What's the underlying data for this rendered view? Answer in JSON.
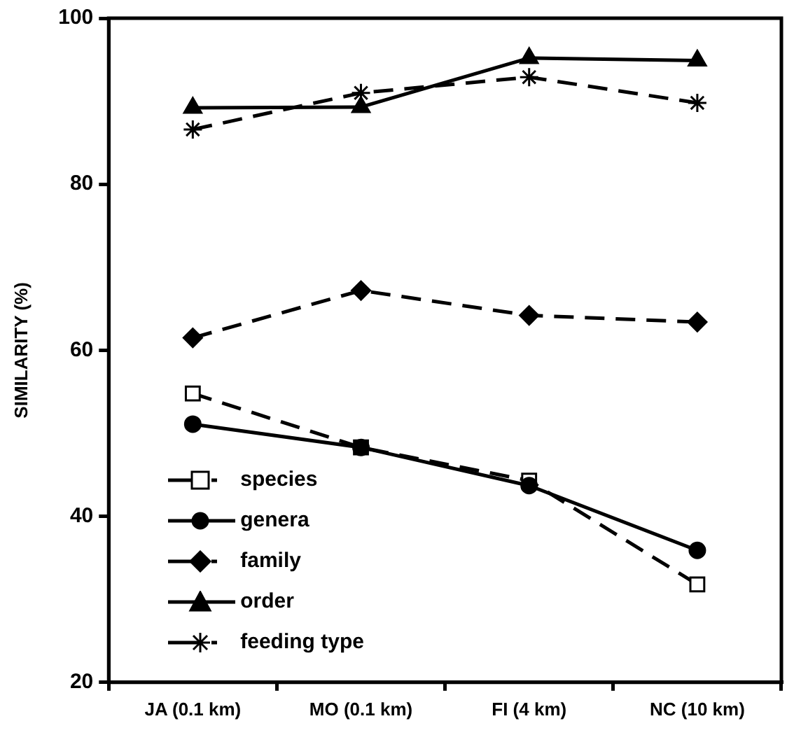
{
  "chart_data": {
    "type": "line",
    "ylabel": "SIMILARITY (%)",
    "categories": [
      "JA (0.1 km)",
      "MO (0.1 km)",
      "FI (4 km)",
      "NC (10 km)"
    ],
    "ylim": [
      20,
      100
    ],
    "yticks": [
      20,
      40,
      60,
      80,
      100
    ],
    "grid": false,
    "legend": "bottom left",
    "series": [
      {
        "name": "species",
        "color": "#000000",
        "marker": "square",
        "line_style": "dashed",
        "values": [
          54.8,
          48.3,
          44.3,
          31.8
        ]
      },
      {
        "name": "genera",
        "color": "#000000",
        "marker": "circle",
        "line_style": "solid",
        "values": [
          51.1,
          48.3,
          43.7,
          35.9
        ]
      },
      {
        "name": "family",
        "color": "#000000",
        "marker": "diamond",
        "line_style": "dashed",
        "values": [
          61.5,
          67.2,
          64.2,
          63.4
        ]
      },
      {
        "name": "order",
        "color": "#000000",
        "marker": "triangle",
        "line_style": "solid",
        "values": [
          89.2,
          89.3,
          95.2,
          94.9
        ]
      },
      {
        "name": "feeding type",
        "color": "#000000",
        "marker": "cross",
        "line_style": "dashed",
        "values": [
          86.6,
          91.0,
          92.9,
          89.8
        ]
      }
    ]
  }
}
